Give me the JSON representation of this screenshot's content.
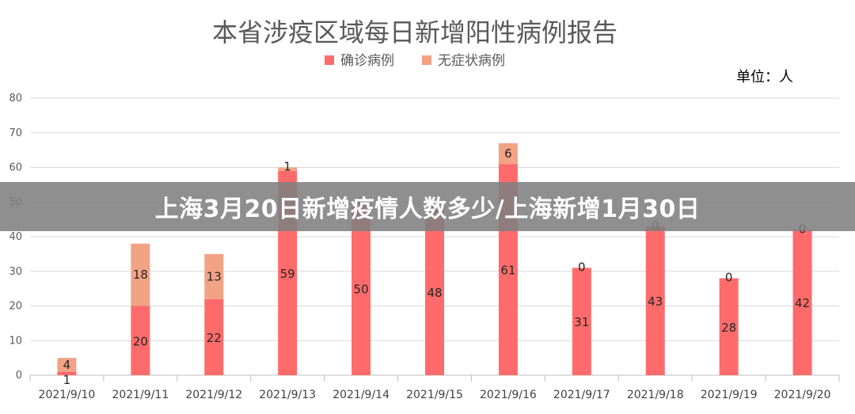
{
  "headline": "上海3月20日新增疫情人数多少/上海新增1月30日",
  "chart_data": {
    "type": "bar",
    "stacked": true,
    "title": "本省涉疫区域每日新增阳性病例报告",
    "unit_label": "单位：人",
    "categories": [
      "2021/9/10",
      "2021/9/11",
      "2021/9/12",
      "2021/9/13",
      "2021/9/14",
      "2021/9/15",
      "2021/9/16",
      "2021/9/17",
      "2021/9/18",
      "2021/9/19",
      "2021/9/20"
    ],
    "series": [
      {
        "name": "确诊病例",
        "color": "#ff6b6b",
        "values": [
          1,
          20,
          22,
          59,
          50,
          48,
          61,
          31,
          43,
          28,
          42
        ]
      },
      {
        "name": "无症状病例",
        "color": "#f2a285",
        "values": [
          4,
          18,
          13,
          1,
          0,
          0,
          6,
          0,
          0,
          0,
          0
        ]
      }
    ],
    "ylim": [
      0,
      80
    ],
    "yticks": [
      0,
      10,
      20,
      30,
      40,
      50,
      60,
      70,
      80
    ],
    "grid": true,
    "legend_position": "top"
  }
}
